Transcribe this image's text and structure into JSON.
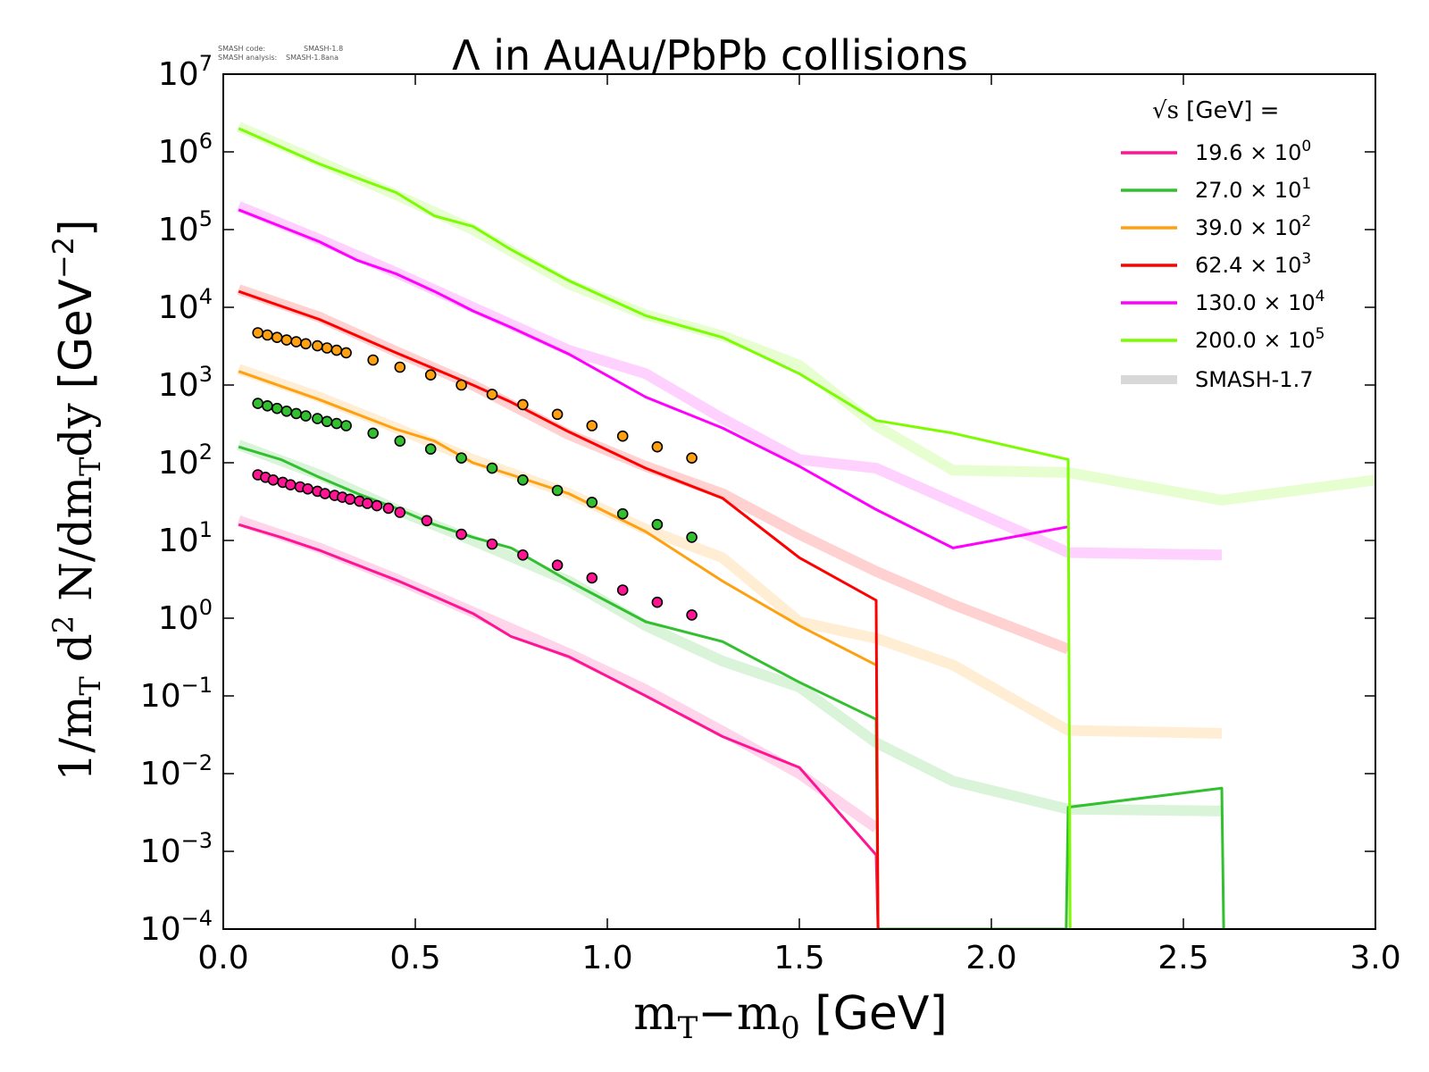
{
  "code_note": {
    "line1_label": "SMASH code:",
    "line1_value": "SMASH-1.8",
    "line2_label": "SMASH analysis:",
    "line2_value": "SMASH-1.8ana"
  },
  "chart_data": {
    "type": "line",
    "title": "Λ in AuAu/PbPb collisions",
    "xlabel": {
      "serif_part": "m",
      "serif_sub": "T",
      "minus": "−m",
      "minus_sub": "0",
      "unit": " [GeV]"
    },
    "ylabel": {
      "prefix": "1/m",
      "sub": "T",
      "d": " d",
      "sup": "2",
      "rest": " N/dm",
      "sub2": "T",
      "dy": "dy",
      "unit": " [GeV",
      "unit_sup": "−2",
      "unit_close": "]"
    },
    "xlim": [
      0.0,
      3.0
    ],
    "ylim_log10": [
      -4,
      7
    ],
    "y_scale": "log",
    "xticks": [
      "0.0",
      "0.5",
      "1.0",
      "1.5",
      "2.0",
      "2.5",
      "3.0"
    ],
    "yticks": [
      {
        "base": "10",
        "exp": "−4"
      },
      {
        "base": "10",
        "exp": "−3"
      },
      {
        "base": "10",
        "exp": "−2"
      },
      {
        "base": "10",
        "exp": "−1"
      },
      {
        "base": "10",
        "exp": "0"
      },
      {
        "base": "10",
        "exp": "1"
      },
      {
        "base": "10",
        "exp": "2"
      },
      {
        "base": "10",
        "exp": "3"
      },
      {
        "base": "10",
        "exp": "4"
      },
      {
        "base": "10",
        "exp": "5"
      },
      {
        "base": "10",
        "exp": "6"
      },
      {
        "base": "10",
        "exp": "7"
      }
    ],
    "legend": {
      "placement": "top-right",
      "title_sqrt": "√s",
      "title_rest": " [GeV] =",
      "entries": [
        {
          "value": "19.6",
          "times": " × 10",
          "exp": "0",
          "color": "#ff1493"
        },
        {
          "value": "27.0",
          "times": " × 10",
          "exp": "1",
          "color": "#32c030"
        },
        {
          "value": "39.0",
          "times": " × 10",
          "exp": "2",
          "color": "#ffa010"
        },
        {
          "value": "62.4",
          "times": " × 10",
          "exp": "3",
          "color": "#ff0000"
        },
        {
          "value": "130.0",
          "times": " × 10",
          "exp": "4",
          "color": "#ff00ff"
        },
        {
          "value": "200.0",
          "times": " × 10",
          "exp": "5",
          "color": "#7cfc00"
        }
      ],
      "reference_label": "SMASH-1.7",
      "reference_color": "#d8d8d8"
    },
    "series": [
      {
        "color": "#ff1493",
        "x": [
          0.04,
          0.15,
          0.25,
          0.35,
          0.45,
          0.55,
          0.65,
          0.75,
          0.9,
          1.1,
          1.3,
          1.5,
          1.7,
          1.705
        ],
        "y": [
          16,
          11,
          7.5,
          4.8,
          3.1,
          1.9,
          1.15,
          0.58,
          0.32,
          0.1,
          0.03,
          0.012,
          0.0009,
          0.0001
        ]
      },
      {
        "color": "#32c030",
        "x": [
          0.04,
          0.15,
          0.25,
          0.35,
          0.45,
          0.55,
          0.65,
          0.75,
          0.9,
          1.1,
          1.3,
          1.5,
          1.7,
          1.705,
          2.195,
          2.2,
          2.6,
          2.605
        ],
        "y": [
          160,
          110,
          65,
          40,
          26,
          16,
          11,
          8,
          3,
          0.9,
          0.5,
          0.15,
          0.05,
          0.0001,
          0.0001,
          0.0037,
          0.0065,
          0.0001
        ]
      },
      {
        "color": "#ffa010",
        "x": [
          0.04,
          0.25,
          0.45,
          0.55,
          0.65,
          0.75,
          0.9,
          1.1,
          1.3,
          1.5,
          1.7
        ],
        "y": [
          1500,
          650,
          270,
          190,
          100,
          70,
          40,
          13,
          3,
          0.8,
          0.25
        ]
      },
      {
        "color": "#ff0000",
        "x": [
          0.04,
          0.25,
          0.45,
          0.65,
          0.75,
          0.9,
          1.1,
          1.3,
          1.5,
          1.7,
          1.705
        ],
        "y": [
          16000,
          7000,
          2600,
          1000,
          600,
          250,
          85,
          35,
          6,
          1.7,
          0.0001
        ]
      },
      {
        "color": "#ff00ff",
        "x": [
          0.04,
          0.25,
          0.35,
          0.45,
          0.55,
          0.65,
          0.75,
          0.9,
          1.1,
          1.3,
          1.5,
          1.7,
          1.9,
          2.2
        ],
        "y": [
          180000,
          70000,
          40000,
          27000,
          16000,
          9000,
          5500,
          2500,
          700,
          280,
          90,
          25,
          8,
          15
        ]
      },
      {
        "color": "#7cfc00",
        "x": [
          0.04,
          0.25,
          0.45,
          0.55,
          0.65,
          0.75,
          0.9,
          1.1,
          1.3,
          1.5,
          1.7,
          1.9,
          2.2,
          2.205
        ],
        "y": [
          2000000,
          700000,
          300000,
          150000,
          110000,
          55000,
          22000,
          7800,
          4100,
          1400,
          350,
          240,
          110,
          0.0001
        ]
      }
    ],
    "reference_series": [
      {
        "color": "#ff1493",
        "x": [
          0.04,
          0.25,
          0.45,
          0.65,
          0.9,
          1.1,
          1.3,
          1.5,
          1.7
        ],
        "y": [
          18,
          8,
          3.2,
          1.2,
          0.35,
          0.12,
          0.035,
          0.01,
          0.002
        ]
      },
      {
        "color": "#32c030",
        "x": [
          0.04,
          0.25,
          0.45,
          0.65,
          0.9,
          1.1,
          1.3,
          1.5,
          1.7,
          1.9,
          2.2,
          2.6
        ],
        "y": [
          170,
          70,
          25,
          10,
          3,
          0.8,
          0.28,
          0.13,
          0.025,
          0.008,
          0.0035,
          0.0033
        ]
      },
      {
        "color": "#ffa010",
        "x": [
          0.04,
          0.25,
          0.45,
          0.65,
          0.9,
          1.1,
          1.3,
          1.5,
          1.7,
          1.9,
          2.2,
          2.6
        ],
        "y": [
          1600,
          700,
          280,
          110,
          40,
          14,
          6,
          0.9,
          0.55,
          0.25,
          0.036,
          0.033
        ]
      },
      {
        "color": "#ff0000",
        "x": [
          0.04,
          0.25,
          0.45,
          0.65,
          0.9,
          1.1,
          1.3,
          1.5,
          1.7,
          1.9,
          2.2
        ],
        "y": [
          17000,
          7500,
          2700,
          1000,
          230,
          90,
          40,
          12,
          4,
          1.5,
          0.4
        ]
      },
      {
        "color": "#ff00ff",
        "x": [
          0.04,
          0.25,
          0.45,
          0.65,
          0.9,
          1.1,
          1.3,
          1.5,
          1.7,
          2.2,
          2.6
        ],
        "y": [
          200000,
          75000,
          28000,
          10000,
          2800,
          1400,
          370,
          110,
          85,
          7,
          6.5
        ]
      },
      {
        "color": "#7cfc00",
        "x": [
          0.04,
          0.25,
          0.45,
          0.65,
          0.9,
          1.1,
          1.3,
          1.5,
          1.7,
          1.9,
          2.2,
          2.6,
          3.0
        ],
        "y": [
          2100000,
          750000,
          280000,
          100000,
          20000,
          8000,
          4300,
          1800,
          300,
          80,
          75,
          33,
          60
        ]
      }
    ],
    "data_points": [
      {
        "color": "#ff1493",
        "x": [
          0.09,
          0.11,
          0.13,
          0.155,
          0.175,
          0.2,
          0.22,
          0.245,
          0.265,
          0.29,
          0.31,
          0.33,
          0.355,
          0.375,
          0.4,
          0.43,
          0.46,
          0.53,
          0.62,
          0.7,
          0.78,
          0.87,
          0.96,
          1.04,
          1.13,
          1.22
        ],
        "y": [
          70,
          65,
          60,
          56,
          52,
          49,
          46,
          43,
          40,
          38,
          36,
          34,
          32,
          30,
          28,
          26,
          23,
          18,
          12,
          9,
          6.5,
          4.8,
          3.3,
          2.3,
          1.6,
          1.1
        ]
      },
      {
        "color": "#32c030",
        "x": [
          0.09,
          0.115,
          0.14,
          0.165,
          0.19,
          0.215,
          0.245,
          0.27,
          0.295,
          0.32,
          0.39,
          0.46,
          0.54,
          0.62,
          0.7,
          0.78,
          0.87,
          0.96,
          1.04,
          1.13,
          1.22
        ],
        "y": [
          580,
          540,
          500,
          460,
          430,
          400,
          370,
          340,
          320,
          300,
          240,
          190,
          150,
          115,
          85,
          60,
          44,
          31,
          22,
          16,
          11
        ]
      },
      {
        "color": "#ffa010",
        "x": [
          0.09,
          0.115,
          0.14,
          0.165,
          0.19,
          0.215,
          0.245,
          0.27,
          0.295,
          0.32,
          0.39,
          0.46,
          0.54,
          0.62,
          0.7,
          0.78,
          0.87,
          0.96,
          1.04,
          1.13,
          1.22
        ],
        "y": [
          4700,
          4400,
          4100,
          3800,
          3600,
          3400,
          3200,
          3000,
          2800,
          2600,
          2100,
          1700,
          1350,
          1000,
          760,
          560,
          420,
          300,
          220,
          160,
          115
        ]
      }
    ]
  }
}
